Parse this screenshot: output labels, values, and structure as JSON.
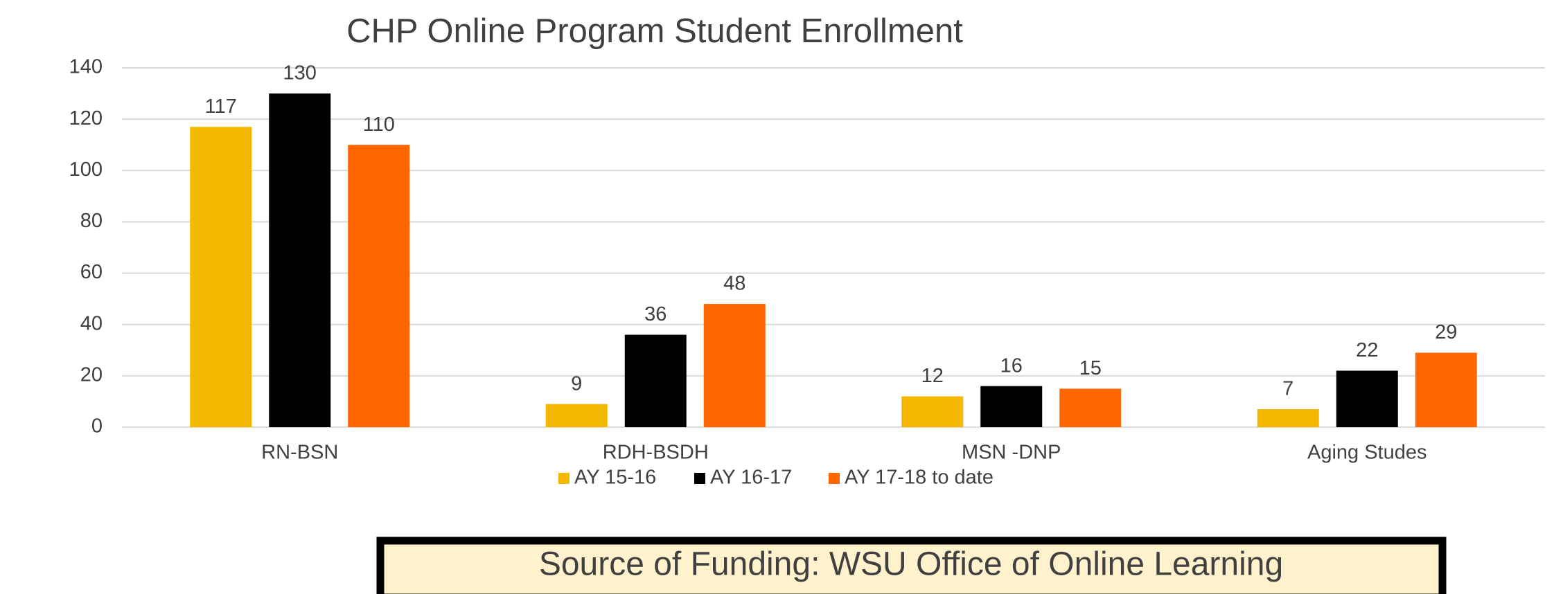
{
  "chart_data": {
    "type": "bar",
    "title": "CHP Online Program Student Enrollment",
    "categories": [
      "RN-BSN",
      "RDH-BSDH",
      "MSN -DNP",
      "Aging Studes"
    ],
    "series": [
      {
        "name": "AY 15-16",
        "color": "#f5b800",
        "values": [
          117,
          9,
          12,
          7
        ]
      },
      {
        "name": "AY 16-17",
        "color": "#000000",
        "values": [
          130,
          36,
          16,
          22
        ]
      },
      {
        "name": "AY 17-18 to date",
        "color": "#ff6600",
        "values": [
          110,
          48,
          15,
          29
        ]
      }
    ],
    "ylim": [
      0,
      140
    ],
    "yticks": [
      0,
      20,
      40,
      60,
      80,
      100,
      120,
      140
    ],
    "grid": true,
    "legend": "bottom",
    "data_labels": true,
    "source_note": "Source of Funding: WSU Office of Online Learning"
  }
}
